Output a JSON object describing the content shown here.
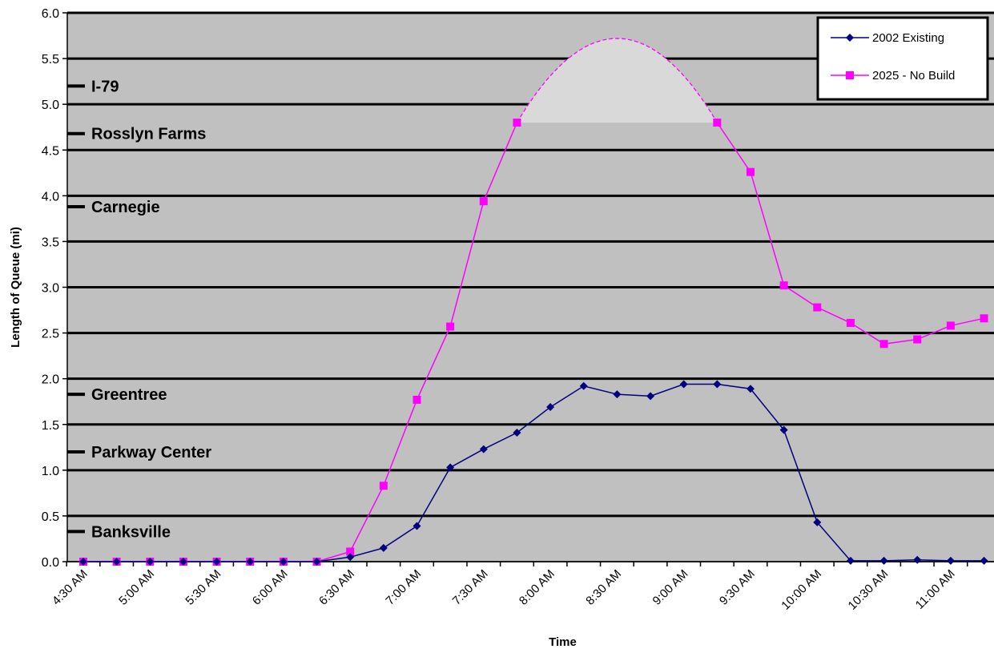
{
  "chart_data": {
    "type": "line",
    "xlabel": "Time",
    "ylabel": "Length of Queue (mi)",
    "ylim": [
      0,
      6
    ],
    "y_ticks": [
      "0.0",
      "0.5",
      "1.0",
      "1.5",
      "2.0",
      "2.5",
      "3.0",
      "3.5",
      "4.0",
      "4.5",
      "5.0",
      "5.5",
      "6.0"
    ],
    "x_tick_labels": [
      "4:30 AM",
      "5:00 AM",
      "5:30 AM",
      "6:00 AM",
      "6:30 AM",
      "7:00 AM",
      "7:30 AM",
      "8:00 AM",
      "8:30 AM",
      "9:00 AM",
      "9:30 AM",
      "10:00 AM",
      "10:30 AM",
      "11:00 AM"
    ],
    "x": [
      "4:30 AM",
      "4:45 AM",
      "5:00 AM",
      "5:15 AM",
      "5:30 AM",
      "5:45 AM",
      "6:00 AM",
      "6:15 AM",
      "6:30 AM",
      "6:45 AM",
      "7:00 AM",
      "7:15 AM",
      "7:30 AM",
      "7:45 AM",
      "8:00 AM",
      "8:15 AM",
      "8:30 AM",
      "8:45 AM",
      "9:00 AM",
      "9:15 AM",
      "9:30 AM",
      "9:45 AM",
      "10:00 AM",
      "10:15 AM",
      "10:30 AM",
      "10:45 AM",
      "11:00 AM",
      "11:15 AM"
    ],
    "series": [
      {
        "name": "2002 Existing",
        "color": "#000080",
        "marker": "diamond",
        "values": [
          0,
          0,
          0,
          0,
          0,
          0,
          0,
          0,
          0.05,
          0.15,
          0.39,
          1.03,
          1.23,
          1.41,
          1.69,
          1.92,
          1.83,
          1.81,
          1.94,
          1.94,
          1.89,
          1.44,
          0.43,
          0.01,
          0.01,
          0.02,
          0.01,
          0.01
        ]
      },
      {
        "name": "2025 - No Build",
        "color": "#ff00ff",
        "marker": "square",
        "values": [
          0,
          0,
          0,
          0,
          0,
          0,
          0,
          0,
          0.11,
          0.83,
          1.77,
          2.57,
          3.94,
          4.8,
          null,
          null,
          null,
          null,
          null,
          4.8,
          4.26,
          3.02,
          2.78,
          2.61,
          2.38,
          2.43,
          2.58,
          2.66
        ],
        "extrapolated_peak": 5.72
      }
    ],
    "landmarks": [
      {
        "label": "I-79",
        "y": 5.2
      },
      {
        "label": "Rosslyn Farms",
        "y": 4.68
      },
      {
        "label": "Carnegie",
        "y": 3.88
      },
      {
        "label": "Greentree",
        "y": 1.83
      },
      {
        "label": "Parkway Center",
        "y": 1.2
      },
      {
        "label": "Banksville",
        "y": 0.33
      }
    ],
    "grid": true,
    "legend_position": "top-right",
    "colors": {
      "plot_bg": "#c0c0c0",
      "gridline": "#000000",
      "shaded_region": "#d9d9d9"
    }
  }
}
